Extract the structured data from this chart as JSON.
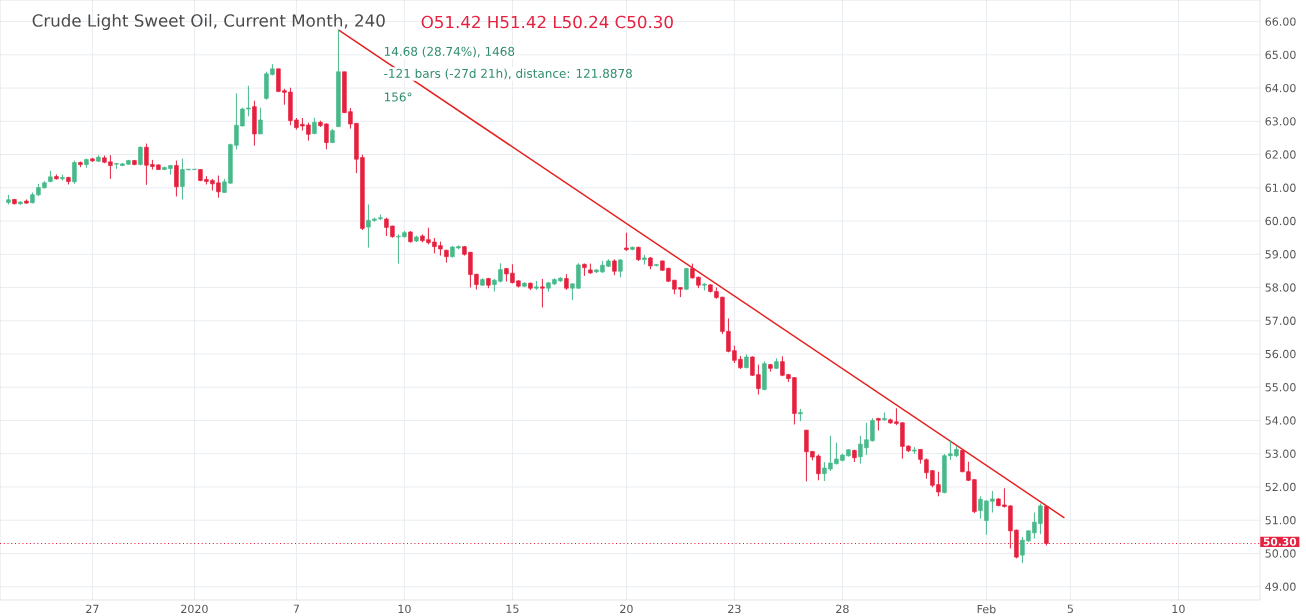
{
  "chart_data": {
    "type": "candlestick",
    "title": "Crude Light Sweet Oil, Current Month, 240",
    "annotations": [
      "O51.42 H51.42 L50.24 C50.30",
      "14.68 (28.74%), 1468",
      "-121 bars (-27d 21h), distance: 121.8878",
      "156°"
    ],
    "categories": [
      null,
      null,
      null,
      null,
      null,
      null,
      null,
      null,
      null,
      null,
      null,
      null,
      null,
      null,
      "27",
      null,
      null,
      null,
      null,
      null,
      null,
      null,
      null,
      null,
      null,
      null,
      null,
      null,
      null,
      null,
      null,
      "2020",
      null,
      null,
      null,
      null,
      null,
      null,
      null,
      null,
      null,
      null,
      null,
      null,
      null,
      null,
      null,
      null,
      "7",
      null,
      null,
      null,
      null,
      null,
      null,
      null,
      null,
      null,
      null,
      null,
      null,
      null,
      null,
      null,
      null,
      null,
      "10",
      null,
      null,
      null,
      null,
      null,
      null,
      null,
      null,
      null,
      null,
      null,
      null,
      null,
      null,
      null,
      null,
      null,
      "15",
      null,
      null,
      null,
      null,
      null,
      null,
      null,
      null,
      null,
      null,
      null,
      null,
      null,
      null,
      null,
      null,
      null,
      null,
      "20",
      null,
      null,
      null,
      null,
      null,
      null,
      null,
      null,
      null,
      null,
      null,
      null,
      null,
      null,
      null,
      null,
      null,
      "23",
      null,
      null,
      null,
      null,
      null,
      null,
      null,
      null,
      null,
      null,
      null,
      null,
      null,
      null,
      null,
      null,
      null,
      "28",
      null,
      null,
      null,
      null,
      null,
      null,
      null,
      null,
      null,
      null,
      null,
      null,
      null,
      null,
      null,
      null,
      null,
      null,
      null,
      null,
      null,
      null,
      null,
      "Feb",
      null,
      null,
      null,
      null,
      null,
      null,
      null,
      null,
      null,
      null,
      null,
      null,
      null,
      "5",
      null,
      null,
      null,
      null,
      null,
      null,
      null,
      null,
      null,
      null,
      null,
      null,
      null,
      null,
      null,
      null,
      null,
      "10",
      null,
      null,
      null,
      null,
      null,
      null,
      null,
      null,
      null,
      null,
      null,
      null,
      null
    ],
    "ohlc": [
      [
        60.56,
        60.79,
        60.5,
        60.64
      ],
      [
        60.65,
        60.66,
        60.5,
        60.52
      ],
      [
        60.52,
        60.6,
        60.49,
        60.57
      ],
      [
        60.6,
        60.65,
        60.52,
        60.54
      ],
      [
        60.55,
        60.86,
        60.53,
        60.79
      ],
      [
        60.79,
        61.12,
        60.75,
        61.01
      ],
      [
        61.0,
        61.2,
        60.98,
        61.15
      ],
      [
        61.19,
        61.51,
        61.17,
        61.33
      ],
      [
        61.34,
        61.4,
        61.25,
        61.27
      ],
      [
        61.27,
        61.4,
        61.22,
        61.31
      ],
      [
        61.31,
        61.33,
        61.1,
        61.19
      ],
      [
        61.18,
        61.82,
        61.12,
        61.76
      ],
      [
        61.76,
        61.79,
        61.62,
        61.7
      ],
      [
        61.7,
        61.88,
        61.6,
        61.85
      ],
      [
        61.87,
        61.9,
        61.78,
        61.81
      ],
      [
        61.8,
        61.98,
        61.78,
        61.92
      ],
      [
        61.9,
        61.97,
        61.74,
        61.77
      ],
      [
        61.78,
        61.98,
        61.27,
        61.67
      ],
      [
        61.71,
        61.75,
        61.57,
        61.73
      ],
      [
        61.67,
        61.74,
        61.65,
        61.72
      ],
      [
        61.71,
        61.84,
        61.69,
        61.82
      ],
      [
        61.82,
        61.84,
        61.68,
        61.7
      ],
      [
        61.7,
        62.24,
        61.68,
        62.22
      ],
      [
        62.22,
        62.33,
        61.09,
        61.68
      ],
      [
        61.7,
        61.84,
        61.55,
        61.64
      ],
      [
        61.69,
        61.7,
        61.54,
        61.55
      ],
      [
        61.55,
        61.64,
        61.53,
        61.61
      ],
      [
        61.58,
        61.69,
        61.4,
        61.67
      ],
      [
        61.67,
        61.82,
        60.74,
        61.03
      ],
      [
        61.04,
        61.88,
        60.65,
        61.55
      ],
      [
        61.54,
        61.56,
        61.54,
        61.56
      ],
      [
        61.55,
        61.56,
        61.54,
        61.56
      ],
      [
        61.55,
        61.56,
        61.2,
        61.22
      ],
      [
        61.25,
        61.35,
        61.1,
        61.19
      ],
      [
        61.22,
        61.27,
        60.92,
        61.12
      ],
      [
        61.15,
        61.37,
        60.7,
        60.88
      ],
      [
        60.86,
        61.27,
        60.85,
        61.18
      ],
      [
        61.14,
        62.33,
        61.12,
        62.3
      ],
      [
        62.28,
        63.84,
        62.15,
        62.88
      ],
      [
        62.86,
        63.41,
        62.85,
        63.37
      ],
      [
        63.37,
        64.07,
        63.15,
        63.4
      ],
      [
        63.44,
        63.62,
        62.27,
        62.62
      ],
      [
        62.62,
        63.41,
        62.62,
        63.04
      ],
      [
        63.69,
        64.49,
        63.65,
        64.43
      ],
      [
        64.41,
        64.72,
        64.38,
        64.58
      ],
      [
        64.58,
        64.58,
        63.88,
        63.9
      ],
      [
        63.92,
        63.98,
        63.5,
        63.87
      ],
      [
        63.88,
        64.01,
        62.88,
        63.02
      ],
      [
        63.04,
        63.1,
        62.75,
        62.81
      ],
      [
        62.91,
        63.1,
        62.72,
        62.86
      ],
      [
        62.89,
        62.96,
        62.42,
        62.61
      ],
      [
        62.63,
        63.11,
        62.62,
        62.97
      ],
      [
        62.97,
        63.02,
        62.83,
        62.87
      ],
      [
        62.92,
        62.94,
        62.16,
        62.36
      ],
      [
        62.36,
        62.77,
        62.35,
        62.72
      ],
      [
        62.84,
        65.75,
        62.84,
        64.49
      ],
      [
        64.49,
        64.49,
        63.25,
        63.26
      ],
      [
        63.29,
        63.4,
        62.78,
        62.92
      ],
      [
        62.94,
        62.94,
        61.44,
        61.86
      ],
      [
        61.91,
        62.0,
        59.73,
        59.78
      ],
      [
        59.82,
        60.5,
        59.2,
        60.02
      ],
      [
        60.02,
        60.1,
        59.98,
        60.06
      ],
      [
        60.07,
        60.2,
        60.03,
        60.1
      ],
      [
        60.06,
        60.1,
        59.55,
        59.81
      ],
      [
        59.85,
        59.86,
        59.5,
        59.53
      ],
      [
        59.52,
        59.6,
        58.72,
        59.54
      ],
      [
        59.53,
        59.7,
        59.5,
        59.65
      ],
      [
        59.67,
        59.7,
        59.35,
        59.38
      ],
      [
        59.4,
        59.56,
        59.37,
        59.52
      ],
      [
        59.55,
        59.6,
        59.36,
        59.41
      ],
      [
        59.44,
        59.8,
        59.3,
        59.35
      ],
      [
        59.37,
        59.49,
        59.03,
        59.23
      ],
      [
        59.26,
        59.38,
        58.96,
        59.16
      ],
      [
        59.12,
        59.14,
        58.75,
        58.93
      ],
      [
        58.93,
        59.25,
        58.9,
        59.22
      ],
      [
        59.19,
        59.27,
        59.15,
        59.23
      ],
      [
        59.23,
        59.25,
        58.96,
        59.0
      ],
      [
        59.06,
        59.07,
        58.0,
        58.39
      ],
      [
        58.4,
        58.41,
        57.94,
        58.09
      ],
      [
        58.07,
        58.28,
        58.05,
        58.24
      ],
      [
        58.27,
        58.29,
        57.98,
        58.07
      ],
      [
        58.09,
        58.26,
        57.88,
        58.22
      ],
      [
        58.19,
        58.73,
        58.15,
        58.54
      ],
      [
        58.57,
        58.59,
        58.18,
        58.41
      ],
      [
        58.43,
        58.7,
        58.12,
        58.15
      ],
      [
        58.2,
        58.22,
        58.0,
        58.04
      ],
      [
        58.04,
        58.16,
        58.01,
        58.13
      ],
      [
        58.13,
        58.15,
        57.92,
        57.98
      ],
      [
        57.98,
        58.2,
        57.93,
        58.02
      ],
      [
        58.02,
        58.26,
        57.4,
        57.98
      ],
      [
        57.98,
        58.17,
        57.88,
        58.14
      ],
      [
        58.11,
        58.28,
        58.07,
        58.24
      ],
      [
        58.2,
        58.31,
        58.17,
        58.28
      ],
      [
        58.27,
        58.4,
        57.93,
        57.98
      ],
      [
        57.98,
        58.13,
        57.62,
        58.11
      ],
      [
        57.98,
        58.73,
        57.96,
        58.68
      ],
      [
        58.7,
        58.72,
        58.35,
        58.6
      ],
      [
        58.53,
        58.72,
        58.41,
        58.44
      ],
      [
        58.47,
        58.55,
        58.44,
        58.53
      ],
      [
        58.47,
        58.8,
        58.44,
        58.67
      ],
      [
        58.64,
        58.85,
        58.62,
        58.8
      ],
      [
        58.8,
        58.85,
        58.37,
        58.49
      ],
      [
        58.49,
        58.85,
        58.31,
        58.83
      ],
      [
        59.19,
        59.65,
        59.1,
        59.14
      ],
      [
        59.15,
        59.23,
        59.12,
        59.21
      ],
      [
        59.21,
        59.23,
        58.8,
        58.84
      ],
      [
        58.84,
        58.98,
        58.69,
        58.89
      ],
      [
        58.89,
        58.92,
        58.55,
        58.65
      ],
      [
        58.66,
        58.71,
        58.64,
        58.69
      ],
      [
        58.8,
        58.81,
        58.5,
        58.52
      ],
      [
        58.58,
        58.59,
        58.17,
        58.19
      ],
      [
        58.22,
        58.23,
        57.8,
        57.95
      ],
      [
        58.0,
        58.0,
        57.71,
        57.95
      ],
      [
        57.95,
        58.59,
        57.93,
        58.57
      ],
      [
        58.57,
        58.72,
        58.27,
        58.29
      ],
      [
        58.31,
        58.33,
        57.98,
        58.07
      ],
      [
        58.07,
        58.13,
        57.91,
        58.1
      ],
      [
        58.08,
        58.1,
        57.85,
        57.88
      ],
      [
        57.88,
        58.0,
        57.66,
        57.7
      ],
      [
        57.71,
        57.72,
        56.6,
        56.68
      ],
      [
        56.68,
        57.07,
        56.05,
        56.08
      ],
      [
        56.1,
        56.25,
        55.73,
        55.81
      ],
      [
        55.84,
        55.94,
        55.55,
        55.59
      ],
      [
        55.59,
        55.99,
        55.57,
        55.91
      ],
      [
        55.91,
        55.93,
        55.34,
        55.36
      ],
      [
        55.38,
        55.68,
        54.78,
        54.96
      ],
      [
        54.93,
        55.78,
        54.91,
        55.71
      ],
      [
        55.68,
        55.7,
        55.47,
        55.57
      ],
      [
        55.57,
        55.87,
        55.55,
        55.77
      ],
      [
        55.77,
        55.93,
        55.33,
        55.36
      ],
      [
        55.38,
        55.4,
        55.16,
        55.26
      ],
      [
        55.29,
        55.3,
        53.88,
        54.21
      ],
      [
        54.2,
        54.35,
        53.98,
        54.24
      ],
      [
        53.71,
        53.71,
        52.17,
        53.06
      ],
      [
        53.07,
        53.08,
        52.8,
        52.9
      ],
      [
        52.93,
        52.98,
        52.2,
        52.4
      ],
      [
        52.4,
        52.75,
        52.18,
        52.57
      ],
      [
        52.54,
        53.54,
        52.48,
        52.72
      ],
      [
        52.7,
        53.33,
        52.68,
        52.84
      ],
      [
        52.8,
        53.0,
        52.77,
        52.96
      ],
      [
        52.94,
        53.14,
        52.91,
        53.12
      ],
      [
        53.1,
        53.12,
        52.75,
        52.88
      ],
      [
        52.91,
        53.54,
        52.7,
        53.29
      ],
      [
        53.18,
        53.93,
        52.96,
        53.42
      ],
      [
        53.39,
        54.07,
        53.37,
        54.0
      ],
      [
        54.06,
        54.08,
        53.7,
        54.01
      ],
      [
        54.02,
        54.24,
        53.99,
        54.06
      ],
      [
        54.02,
        54.06,
        53.9,
        53.93
      ],
      [
        53.96,
        54.37,
        53.86,
        53.91
      ],
      [
        53.93,
        53.95,
        52.85,
        53.22
      ],
      [
        53.23,
        53.25,
        53.05,
        53.09
      ],
      [
        53.08,
        53.2,
        53.0,
        53.11
      ],
      [
        53.13,
        53.14,
        52.7,
        52.83
      ],
      [
        52.82,
        52.86,
        52.25,
        52.43
      ],
      [
        52.49,
        52.51,
        51.99,
        52.05
      ],
      [
        52.07,
        52.46,
        51.72,
        51.85
      ],
      [
        51.83,
        52.99,
        51.81,
        52.94
      ],
      [
        52.94,
        53.4,
        52.81,
        53.0
      ],
      [
        52.94,
        53.24,
        52.9,
        53.13
      ],
      [
        53.1,
        53.11,
        52.44,
        52.46
      ],
      [
        52.46,
        52.76,
        52.18,
        52.2
      ],
      [
        52.22,
        52.24,
        51.21,
        51.26
      ],
      [
        51.29,
        51.72,
        51.05,
        51.63
      ],
      [
        50.99,
        51.6,
        50.56,
        51.58
      ],
      [
        51.57,
        51.88,
        51.23,
        51.64
      ],
      [
        51.64,
        51.66,
        51.42,
        51.44
      ],
      [
        51.46,
        51.96,
        51.38,
        51.41
      ],
      [
        51.43,
        51.45,
        50.15,
        50.68
      ],
      [
        50.7,
        50.72,
        49.85,
        49.89
      ],
      [
        49.95,
        50.5,
        49.71,
        50.4
      ],
      [
        50.38,
        50.7,
        50.35,
        50.68
      ],
      [
        50.62,
        51.23,
        50.45,
        50.94
      ],
      [
        50.9,
        51.5,
        50.58,
        51.43
      ],
      [
        51.42,
        51.42,
        50.24,
        50.3
      ],
      null,
      null,
      null,
      null,
      null,
      null,
      null,
      null,
      null,
      null,
      null,
      null,
      null,
      null,
      null,
      null,
      null,
      null,
      null,
      null,
      null,
      null,
      null,
      null,
      null,
      null,
      null,
      null,
      null,
      null,
      null,
      null,
      null,
      null,
      null
    ],
    "colors": [
      "#48b98a",
      "#e5213f",
      "#48b98a",
      "#e5213f",
      "#48b98a",
      "#48b98a",
      "#48b98a",
      "#48b98a",
      "#e5213f",
      "#48b98a",
      "#e5213f",
      "#48b98a",
      "#e5213f",
      "#48b98a",
      "#e5213f",
      "#48b98a",
      "#e5213f",
      "#e5213f",
      "#48b98a",
      "#48b98a",
      "#48b98a",
      "#e5213f",
      "#48b98a",
      "#e5213f",
      "#e5213f",
      "#e5213f",
      "#48b98a",
      "#48b98a",
      "#e5213f",
      "#48b98a",
      "#48b98a",
      "#48b98a",
      "#e5213f",
      "#e5213f",
      "#e5213f",
      "#e5213f",
      "#48b98a",
      "#48b98a",
      "#48b98a",
      "#48b98a",
      "#48b98a",
      "#e5213f",
      "#48b98a",
      "#48b98a",
      "#48b98a",
      "#e5213f",
      "#e5213f",
      "#e5213f",
      "#e5213f",
      "#e5213f",
      "#e5213f",
      "#48b98a",
      "#e5213f",
      "#e5213f",
      "#48b98a",
      "#48b98a",
      "#e5213f",
      "#e5213f",
      "#e5213f",
      "#e5213f",
      "#48b98a",
      "#48b98a",
      "#48b98a",
      "#e5213f",
      "#e5213f",
      "#48b98a",
      "#48b98a",
      "#e5213f",
      "#48b98a",
      "#e5213f",
      "#e5213f",
      "#e5213f",
      "#e5213f",
      "#e5213f",
      "#48b98a",
      "#48b98a",
      "#e5213f",
      "#e5213f",
      "#e5213f",
      "#48b98a",
      "#e5213f",
      "#48b98a",
      "#48b98a",
      "#e5213f",
      "#e5213f",
      "#e5213f",
      "#48b98a",
      "#e5213f",
      "#48b98a",
      "#e5213f",
      "#48b98a",
      "#48b98a",
      "#48b98a",
      "#e5213f",
      "#48b98a",
      "#48b98a",
      "#e5213f",
      "#e5213f",
      "#48b98a",
      "#48b98a",
      "#48b98a",
      "#e5213f",
      "#48b98a",
      "#e5213f",
      "#48b98a",
      "#e5213f",
      "#48b98a",
      "#e5213f",
      "#48b98a",
      "#e5213f",
      "#e5213f",
      "#e5213f",
      "#e5213f",
      "#48b98a",
      "#e5213f",
      "#e5213f",
      "#48b98a",
      "#e5213f",
      "#e5213f",
      "#e5213f",
      "#e5213f",
      "#e5213f",
      "#e5213f",
      "#48b98a",
      "#e5213f",
      "#e5213f",
      "#48b98a",
      "#e5213f",
      "#48b98a",
      "#e5213f",
      "#e5213f",
      "#e5213f",
      "#48b98a",
      "#e5213f",
      "#e5213f",
      "#e5213f",
      "#48b98a",
      "#48b98a",
      "#48b98a",
      "#48b98a",
      "#48b98a",
      "#e5213f",
      "#48b98a",
      "#48b98a",
      "#48b98a",
      "#e5213f",
      "#48b98a",
      "#e5213f",
      "#e5213f",
      "#e5213f",
      "#e5213f",
      "#48b98a",
      "#e5213f",
      "#e5213f",
      "#e5213f",
      "#e5213f",
      "#48b98a",
      "#48b98a",
      "#48b98a",
      "#e5213f",
      "#e5213f",
      "#e5213f",
      "#48b98a",
      "#48b98a",
      "#48b98a",
      "#e5213f",
      "#e5213f",
      "#e5213f",
      "#e5213f",
      "#48b98a",
      "#48b98a",
      "#48b98a",
      "#48b98a",
      "#e5213f",
      null,
      null,
      null,
      null,
      null,
      null,
      null,
      null,
      null,
      null,
      null,
      null,
      null,
      null,
      null,
      null,
      null,
      null,
      null,
      null,
      null,
      null,
      null,
      null,
      null,
      null,
      null,
      null,
      null,
      null,
      null,
      null,
      null,
      null,
      null
    ],
    "series": [
      {
        "type": "line",
        "color": "#e5201f",
        "values": [
          null,
          null,
          null,
          null,
          null,
          null,
          null,
          null,
          null,
          null,
          null,
          null,
          null,
          null,
          null,
          null,
          null,
          null,
          null,
          null,
          null,
          null,
          null,
          null,
          null,
          null,
          null,
          null,
          null,
          null,
          null,
          null,
          null,
          null,
          null,
          null,
          null,
          null,
          null,
          null,
          null,
          null,
          null,
          null,
          null,
          null,
          null,
          null,
          null,
          null,
          null,
          null,
          null,
          null,
          null,
          65.75,
          null,
          null,
          null,
          null,
          null,
          null,
          null,
          null,
          null,
          null,
          null,
          null,
          null,
          null,
          null,
          null,
          null,
          null,
          null,
          null,
          null,
          null,
          null,
          null,
          null,
          null,
          null,
          null,
          null,
          null,
          null,
          null,
          null,
          null,
          null,
          null,
          null,
          null,
          null,
          null,
          null,
          null,
          null,
          null,
          null,
          null,
          null,
          null,
          null,
          null,
          null,
          null,
          null,
          null,
          null,
          null,
          null,
          null,
          null,
          null,
          null,
          null,
          null,
          null,
          null,
          null,
          null,
          null,
          null,
          null,
          null,
          null,
          null,
          null,
          null,
          null,
          null,
          null,
          null,
          null,
          null,
          null,
          null,
          null,
          null,
          null,
          null,
          null,
          null,
          null,
          null,
          null,
          null,
          null,
          null,
          null,
          null,
          null,
          null,
          null,
          null,
          null,
          null,
          null,
          null,
          null,
          null,
          null,
          null,
          null,
          null,
          null,
          null,
          null,
          null,
          null,
          null,
          null,
          null,
          null,
          51.07,
          null,
          null,
          null,
          null,
          null,
          null,
          null,
          null,
          null,
          null,
          null,
          null,
          null,
          null,
          null,
          null,
          null,
          null,
          null,
          null,
          null,
          null,
          null,
          null,
          null,
          null,
          null,
          null,
          null,
          null,
          null,
          null
        ]
      }
    ],
    "ref_lines": [
      {
        "axis": "y",
        "value": 50.3,
        "label": "50.30",
        "color": "#e5213f",
        "line_style": "dotted"
      }
    ],
    "ylim": [
      48.6,
      66.65
    ],
    "yticks": [
      {
        "value": 49,
        "label": "49.00"
      },
      {
        "value": 50,
        "label": "50.00"
      },
      {
        "value": 51,
        "label": "51.00"
      },
      {
        "value": 52,
        "label": "52.00"
      },
      {
        "value": 53,
        "label": "53.00"
      },
      {
        "value": 54,
        "label": "54.00"
      },
      {
        "value": 55,
        "label": "55.00"
      },
      {
        "value": 56,
        "label": "56.00"
      },
      {
        "value": 57,
        "label": "57.00"
      },
      {
        "value": 58,
        "label": "58.00"
      },
      {
        "value": 59,
        "label": "59.00"
      },
      {
        "value": 60,
        "label": "60.00"
      },
      {
        "value": 61,
        "label": "61.00"
      },
      {
        "value": 62,
        "label": "62.00"
      },
      {
        "value": 63,
        "label": "63.00"
      },
      {
        "value": 64,
        "label": "64.00"
      },
      {
        "value": 65,
        "label": "65.00"
      },
      {
        "value": 66,
        "label": "66.00"
      }
    ],
    "grid": true
  }
}
